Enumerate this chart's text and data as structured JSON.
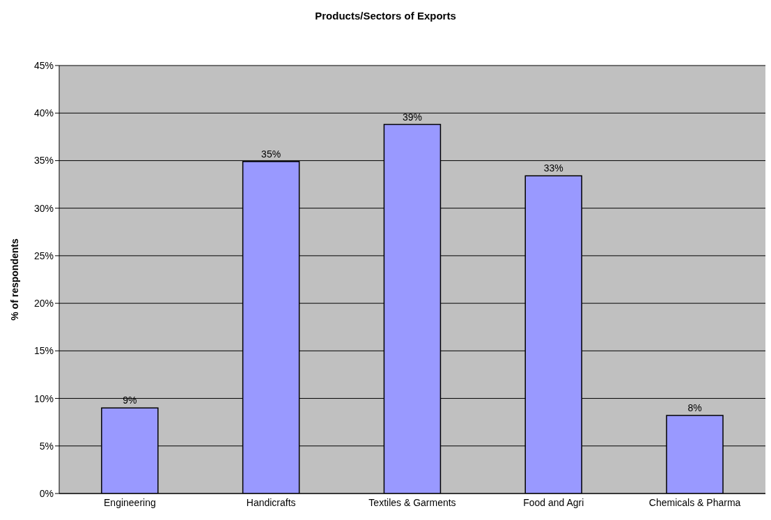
{
  "chart_data": {
    "type": "bar",
    "title": "Products/Sectors of Exports",
    "ylabel": "% of respondents",
    "categories": [
      "Engineering",
      "Handicrafts",
      "Textiles & Garments",
      "Food and Agri",
      "Chemicals & Pharma"
    ],
    "values": [
      9,
      34.9,
      38.8,
      33.4,
      8.2
    ],
    "value_labels": [
      "9%",
      "35%",
      "39%",
      "33%",
      "8%"
    ],
    "color": "#9999ff",
    "ylim": [
      0,
      45
    ],
    "yticks": [
      {
        "value": 0,
        "label": "0%"
      },
      {
        "value": 5,
        "label": "5%"
      },
      {
        "value": 10,
        "label": "10%"
      },
      {
        "value": 15,
        "label": "15%"
      },
      {
        "value": 20,
        "label": "20%"
      },
      {
        "value": 25,
        "label": "25%"
      },
      {
        "value": 30,
        "label": "30%"
      },
      {
        "value": 35,
        "label": "35%"
      },
      {
        "value": 40,
        "label": "40%"
      },
      {
        "value": 45,
        "label": "45%"
      }
    ],
    "grid": "y",
    "legend": false
  }
}
